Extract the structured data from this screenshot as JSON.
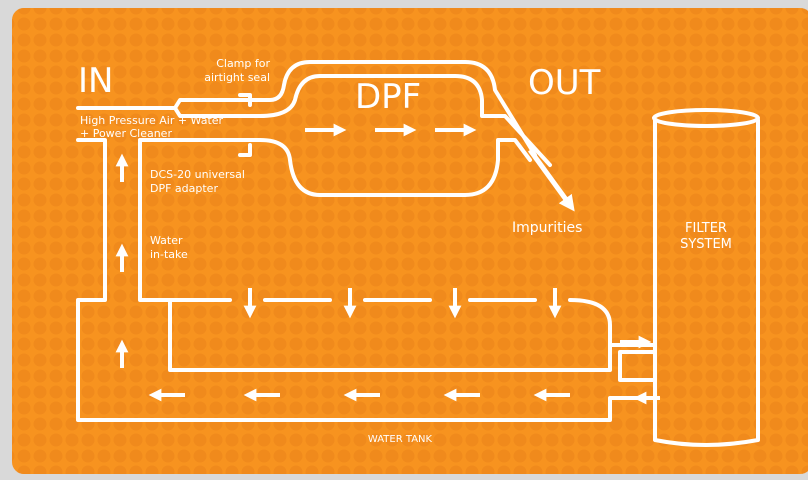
{
  "labels": {
    "in": "IN",
    "out": "OUT",
    "dpf": "DPF",
    "clamp": [
      "Clamp for",
      "airtight seal"
    ],
    "input": [
      "High Pressure Air + Water",
      "+ Power Cleaner"
    ],
    "adapter": [
      "DCS-20 universal",
      "DPF adapter"
    ],
    "intake": [
      "Water",
      "in-take"
    ],
    "impurities": "Impurities",
    "filter": [
      "FILTER",
      "SYSTEM"
    ],
    "tank": "WATER TANK"
  }
}
